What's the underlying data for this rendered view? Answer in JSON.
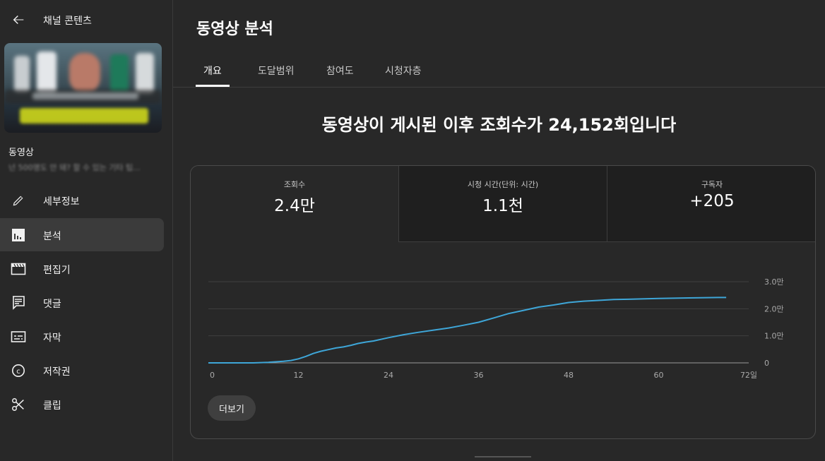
{
  "sidebar": {
    "title": "채널 콘텐츠",
    "video_label": "동영상",
    "video_subtitle": "넌 500명도 안 돼? 할 수 있는 기타 팁...",
    "items": [
      {
        "label": "세부정보",
        "icon": "pencil-icon"
      },
      {
        "label": "분석",
        "icon": "analytics-icon",
        "active": true
      },
      {
        "label": "편집기",
        "icon": "editor-icon"
      },
      {
        "label": "댓글",
        "icon": "comment-icon"
      },
      {
        "label": "자막",
        "icon": "subtitles-icon"
      },
      {
        "label": "저작권",
        "icon": "copyright-icon"
      },
      {
        "label": "클립",
        "icon": "scissors-icon"
      }
    ]
  },
  "main": {
    "title": "동영상 분석",
    "tabs": [
      "개요",
      "도달범위",
      "참여도",
      "시청자층"
    ],
    "headline": "동영상이 게시된 이후 조회수가 24,152회입니다",
    "metrics": [
      {
        "label": "조회수",
        "value": "2.4만"
      },
      {
        "label": "시청 시간(단위: 시간)",
        "value": "1.1천"
      },
      {
        "label": "구독자",
        "value": "+205"
      }
    ],
    "more_label": "더보기"
  },
  "colors": {
    "line": "#3ea6d8",
    "background": "#282828",
    "accent": "#ffffff"
  },
  "chart_data": {
    "type": "line",
    "x_tick_labels": [
      "0",
      "12",
      "24",
      "36",
      "48",
      "60",
      "72일"
    ],
    "y_tick_labels": [
      "0",
      "1.0만",
      "2.0만",
      "3.0만"
    ],
    "xlim": [
      0,
      72
    ],
    "ylim": [
      0,
      30000
    ],
    "grid": true,
    "series": [
      {
        "x": [
          0,
          2,
          4,
          6,
          8,
          10,
          11,
          12,
          13,
          14,
          15,
          16,
          17,
          18,
          19,
          20,
          21,
          22,
          24,
          26,
          28,
          30,
          32,
          34,
          36,
          38,
          40,
          42,
          44,
          46,
          48,
          50,
          52,
          54,
          56,
          60,
          64,
          68,
          69
        ],
        "y": [
          0,
          0,
          0,
          0,
          200,
          600,
          900,
          1500,
          2400,
          3500,
          4300,
          4900,
          5500,
          5900,
          6500,
          7200,
          7700,
          8100,
          9300,
          10400,
          11300,
          12100,
          12900,
          13900,
          15000,
          16600,
          18200,
          19400,
          20600,
          21400,
          22300,
          22800,
          23100,
          23400,
          23500,
          23800,
          24000,
          24150,
          24152
        ]
      }
    ]
  }
}
